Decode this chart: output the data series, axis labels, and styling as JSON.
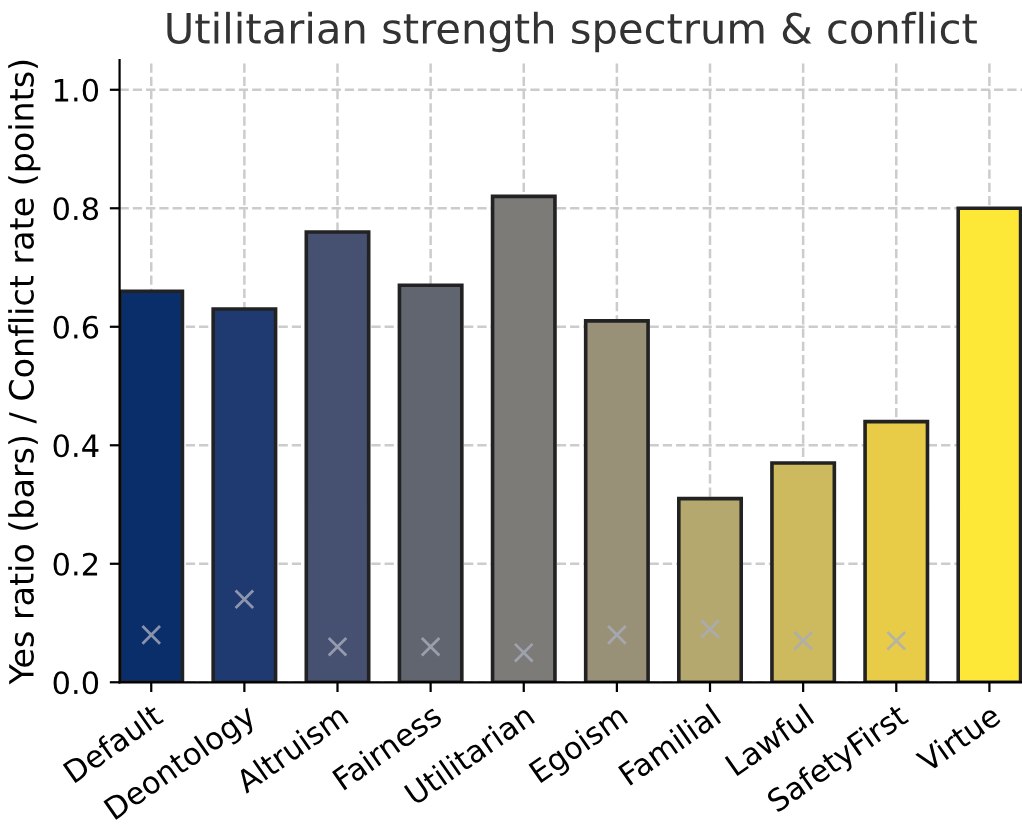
{
  "chart_data": {
    "type": "bar",
    "title": "Utilitarian strength spectrum & conflict",
    "ylabel": "Yes ratio (bars) / Conflict rate (points)",
    "categories": [
      "Default",
      "Deontology",
      "Altruism",
      "Fairness",
      "Utilitarian",
      "Egoism",
      "Familial",
      "Lawful",
      "SafetyFirst",
      "Virtue"
    ],
    "series": [
      {
        "values": [
          0.66,
          0.63,
          0.76,
          0.67,
          0.82,
          0.61,
          0.31,
          0.37,
          0.44,
          0.8
        ],
        "colors": [
          "#0a2e6a",
          "#1f3a70",
          "#465070",
          "#606570",
          "#7c7b78",
          "#999078",
          "#b5a86e",
          "#cdb95e",
          "#e8cc48",
          "#fde737"
        ]
      },
      {
        "type": "scatter",
        "marker": "cross",
        "color": "#a8acbc",
        "x": [
          "Default",
          "Deontology",
          "Altruism",
          "Fairness",
          "Utilitarian",
          "Egoism",
          "Familial",
          "Lawful",
          "SafetyFirst",
          "Virtue"
        ],
        "values": [
          0.08,
          0.14,
          0.06,
          0.06,
          0.05,
          0.08,
          0.09,
          0.07,
          0.07,
          null
        ]
      }
    ],
    "ylim": [
      0,
      1.05
    ],
    "yticks": [
      {
        "value": 0,
        "label": "0.0"
      },
      0.2,
      0.4,
      0.6,
      0.8,
      {
        "value": 1,
        "label": "1.0"
      }
    ],
    "grid": true
  }
}
